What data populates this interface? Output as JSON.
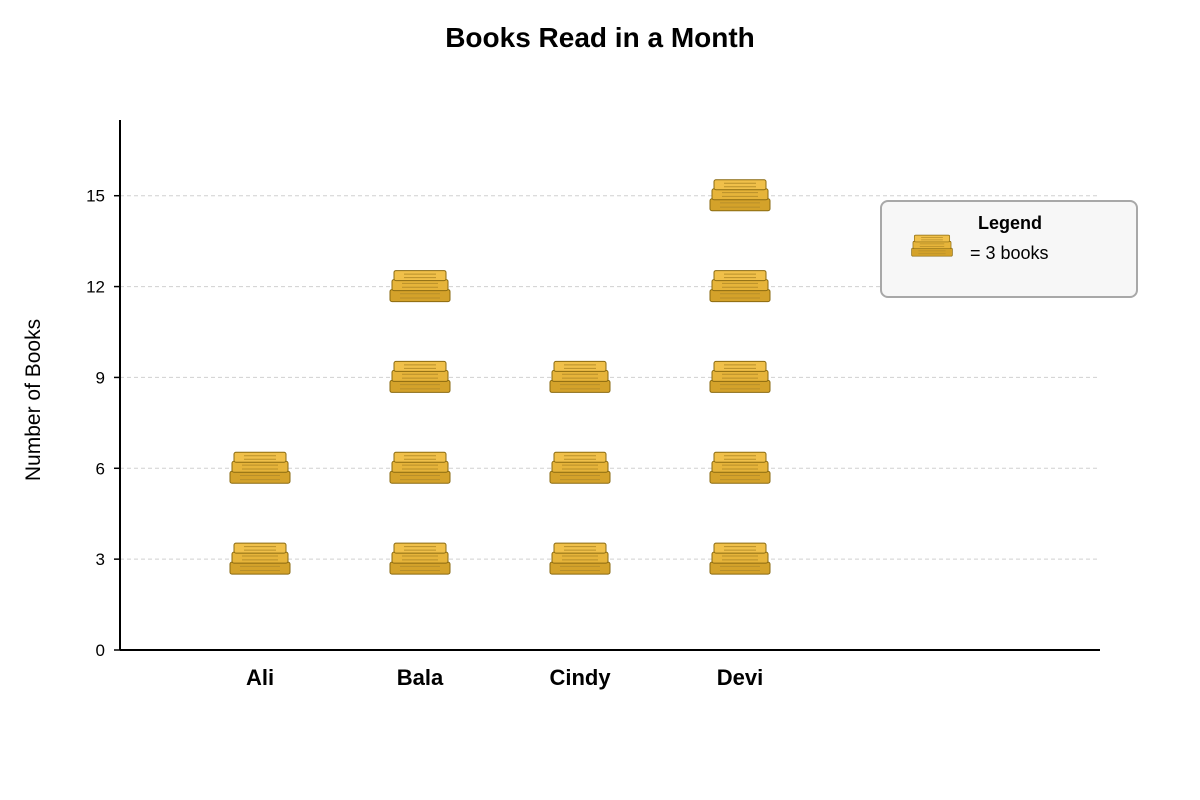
{
  "chart_data": {
    "type": "pictograph",
    "title": "Books Read in a Month",
    "xlabel": "",
    "ylabel": "Number of Books",
    "categories": [
      "Ali",
      "Bala",
      "Cindy",
      "Devi"
    ],
    "values": [
      6,
      12,
      9,
      15
    ],
    "ylim": [
      0,
      17.5
    ],
    "yticks": [
      "0",
      "3",
      "6",
      "9",
      "12",
      "15"
    ],
    "icon_value": 3,
    "icon": "book-stack-icon",
    "grid": true,
    "legend": {
      "title": "Legend",
      "text": "= 3 books",
      "placement": "right"
    },
    "colors": {
      "book_light": "#f0c04a",
      "book_mid": "#e6b43a",
      "book_dark": "#d4a22a",
      "book_stroke": "#8a6a10",
      "book_lines": "#b88f2a"
    }
  }
}
